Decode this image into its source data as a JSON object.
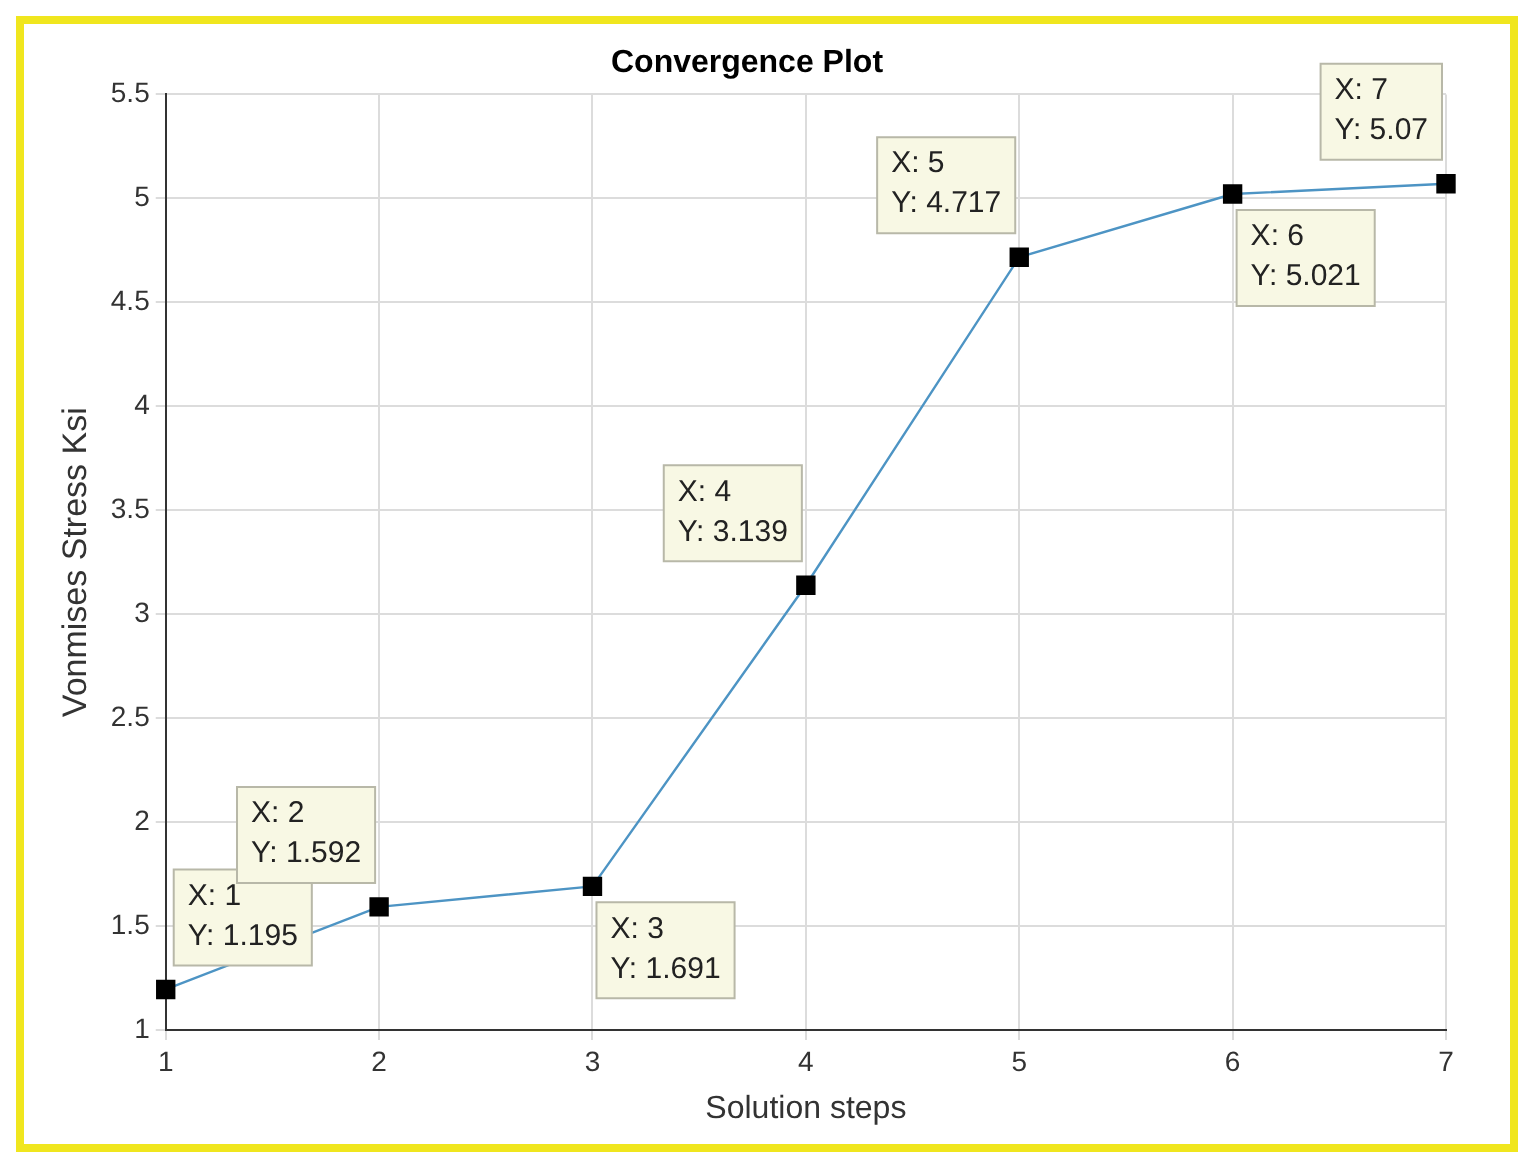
{
  "chart_data": {
    "type": "line",
    "title": "Convergence Plot",
    "xlabel": "Solution steps",
    "ylabel": "Vonmises Stress Ksi",
    "x": [
      1,
      2,
      3,
      4,
      5,
      6,
      7
    ],
    "series": [
      {
        "color": "#4d94c4",
        "values": [
          1.195,
          1.592,
          1.691,
          3.139,
          4.717,
          5.021,
          5.07
        ]
      }
    ],
    "marker": "square",
    "grid": true,
    "xlim": [
      1,
      7
    ],
    "xticks": [
      1,
      2,
      3,
      4,
      5,
      6,
      7
    ],
    "ylim": [
      1,
      5.5
    ],
    "yticks": [
      1,
      1.5,
      2,
      2.5,
      3,
      3.5,
      4,
      4.5,
      5,
      5.5
    ],
    "annotations": [
      {
        "text": "X: 1\nY: 1.195",
        "x": 1,
        "y": 1.195
      },
      {
        "text": "X: 2\nY: 1.592",
        "x": 2,
        "y": 1.592
      },
      {
        "text": "X: 3\nY: 1.691",
        "x": 3,
        "y": 1.691
      },
      {
        "text": "X: 4\nY: 3.139",
        "x": 4,
        "y": 3.139
      },
      {
        "text": "X: 5\nY: 4.717",
        "x": 5,
        "y": 4.717
      },
      {
        "text": "X: 6\nY: 5.021",
        "x": 6,
        "y": 5.021
      },
      {
        "text": "X: 7\nY: 5.07",
        "x": 7,
        "y": 5.07
      }
    ]
  }
}
